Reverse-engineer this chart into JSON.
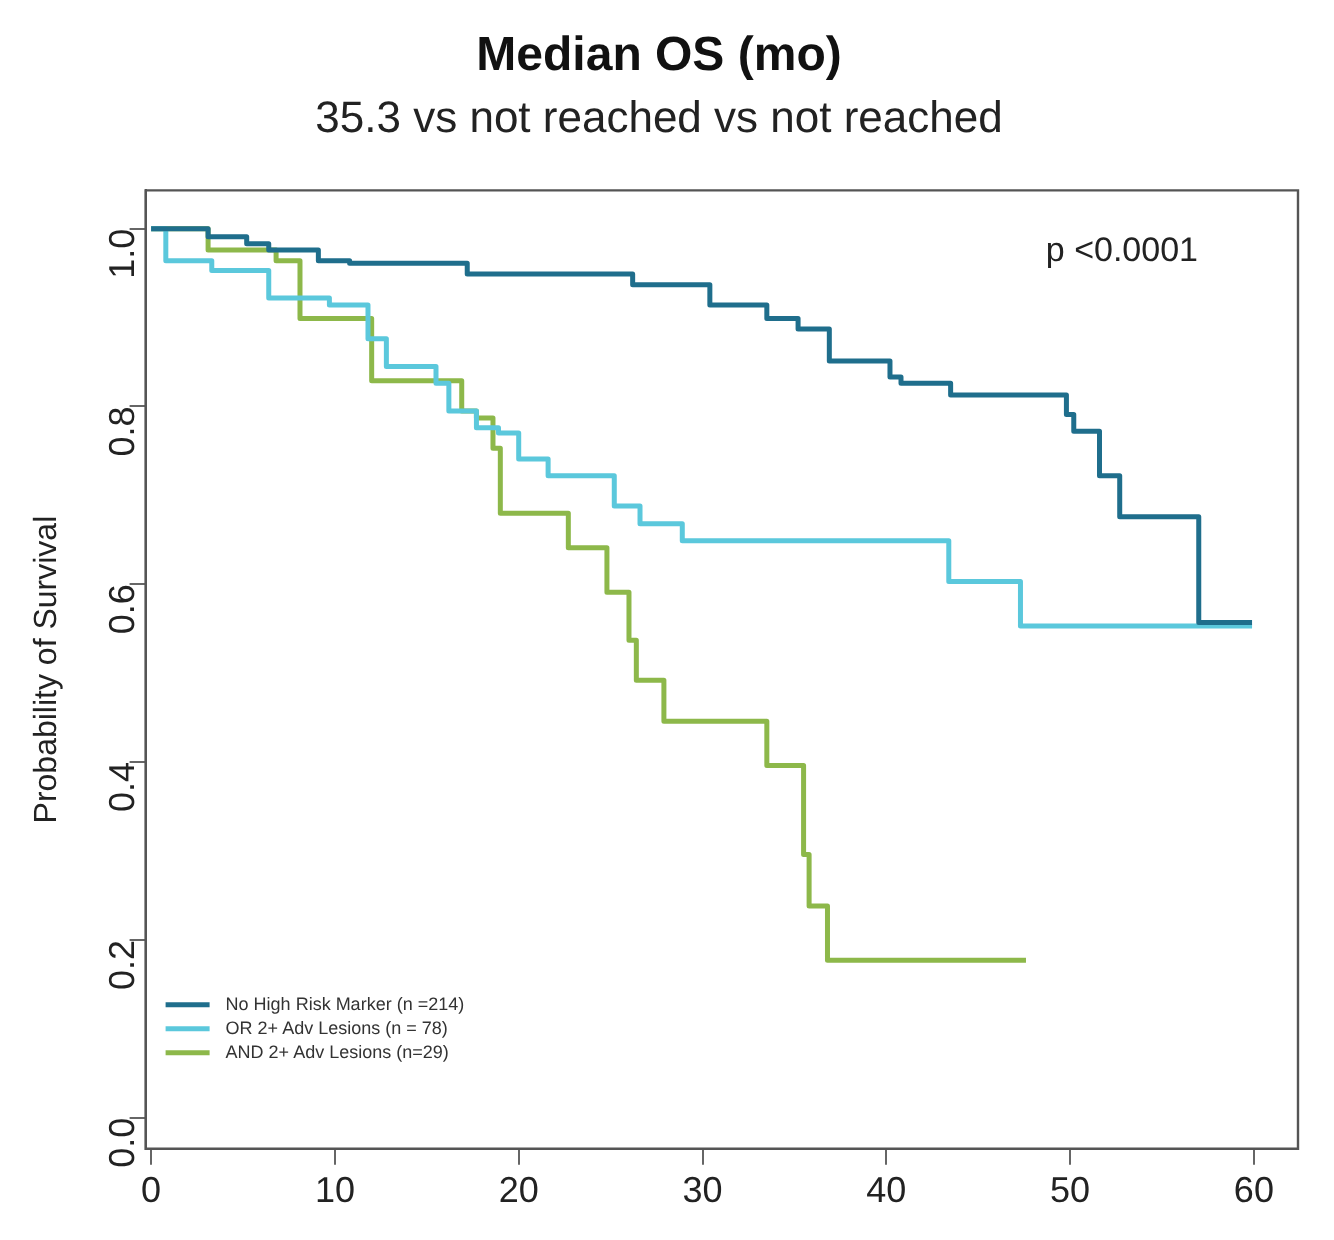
{
  "chart_data": {
    "type": "step",
    "title": "Median OS (mo)",
    "subtitle": "35.3 vs not reached vs not reached",
    "ylabel": "Probability of Survival",
    "xlim": [
      -0.3,
      62.4
    ],
    "xticks": [
      0,
      10,
      20,
      30,
      40,
      50,
      60
    ],
    "ylim": [
      -0.035,
      1.043
    ],
    "yticks": [
      {
        "value": 0,
        "label": "0.0"
      },
      {
        "value": 0.2,
        "label": "0.2"
      },
      {
        "value": 0.4,
        "label": "0.4"
      },
      {
        "value": 0.6,
        "label": "0.6"
      },
      {
        "value": 0.8,
        "label": "0.8"
      },
      {
        "value": 1,
        "label": "1.0"
      }
    ],
    "grid": false,
    "legend": "bottom left",
    "annotations": [
      "p <0.0001"
    ],
    "series": [
      {
        "name": "No High Risk Marker (n =214)",
        "color": "#1f6e8c",
        "x": [
          0,
          3.1,
          5.2,
          6.4,
          9.1,
          10.8,
          17.2,
          26.2,
          30.4,
          33.5,
          35.2,
          36.9,
          40.2,
          40.8,
          43.5,
          49.8,
          50.2,
          51.6,
          52.7,
          57.0,
          59.9
        ],
        "values": [
          1.0,
          0.991,
          0.983,
          0.976,
          0.964,
          0.961,
          0.949,
          0.937,
          0.914,
          0.899,
          0.887,
          0.851,
          0.833,
          0.826,
          0.813,
          0.791,
          0.772,
          0.722,
          0.676,
          0.557,
          0.557
        ]
      },
      {
        "name": "OR 2+ Adv Lesions (n = 78)",
        "color": "#5bc8dc",
        "x": [
          0,
          0.8,
          3.3,
          6.4,
          9.7,
          11.8,
          12.8,
          15.5,
          16.2,
          17.7,
          18.9,
          20.0,
          21.6,
          25.2,
          26.6,
          28.9,
          43.4,
          47.3,
          59.9
        ],
        "values": [
          1.0,
          0.964,
          0.953,
          0.922,
          0.914,
          0.876,
          0.845,
          0.826,
          0.795,
          0.776,
          0.77,
          0.741,
          0.722,
          0.688,
          0.668,
          0.649,
          0.603,
          0.553,
          0.553
        ]
      },
      {
        "name": "AND 2+ Adv Lesions (n=29)",
        "color": "#8db84a",
        "x": [
          0,
          3.1,
          6.8,
          8.1,
          12.0,
          16.9,
          17.7,
          18.6,
          19.0,
          22.7,
          24.8,
          26.0,
          26.4,
          27.9,
          33.5,
          35.5,
          35.8,
          36.8,
          47.6
        ],
        "values": [
          1.0,
          0.976,
          0.964,
          0.899,
          0.829,
          0.795,
          0.787,
          0.753,
          0.68,
          0.641,
          0.591,
          0.537,
          0.492,
          0.446,
          0.396,
          0.296,
          0.238,
          0.177,
          0.177
        ]
      }
    ]
  }
}
